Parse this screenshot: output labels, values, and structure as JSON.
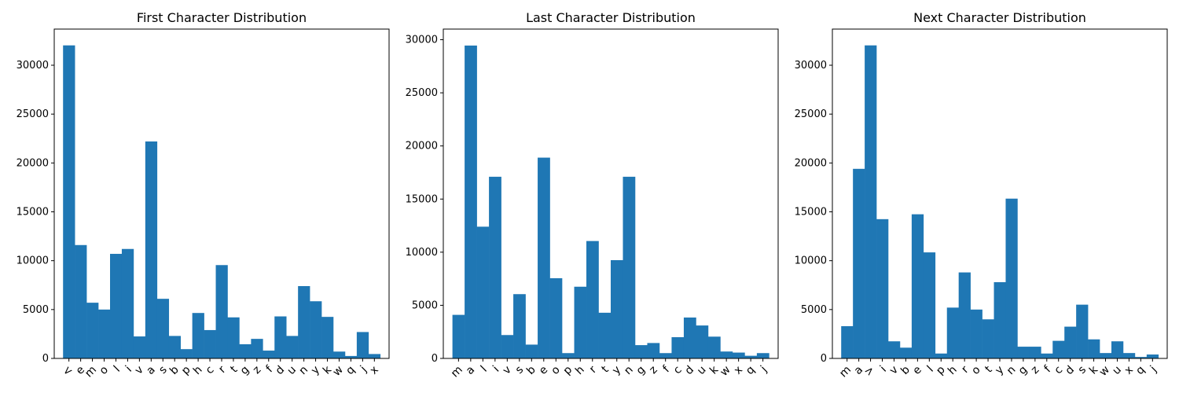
{
  "figure": {
    "bar_color": "#1f77b4"
  },
  "chart_data": [
    {
      "type": "bar",
      "title": "First Character Distribution",
      "xlabel": "",
      "ylabel": "",
      "ylim": [
        0,
        33700
      ],
      "yticks": [
        0,
        5000,
        10000,
        15000,
        20000,
        25000,
        30000
      ],
      "tick_labels": [
        "0",
        "5000",
        "10000",
        "15000",
        "20000",
        "25000",
        "30000"
      ],
      "grid": false,
      "categories": [
        "<",
        "e",
        "m",
        "o",
        "l",
        "i",
        "v",
        "a",
        "s",
        "b",
        "p",
        "h",
        "c",
        "r",
        "t",
        "g",
        "z",
        "f",
        "d",
        "u",
        "n",
        "y",
        "k",
        "w",
        "q",
        "j",
        "x"
      ],
      "values": [
        32033,
        11600,
        5700,
        5000,
        10700,
        11200,
        2250,
        22200,
        6100,
        2300,
        950,
        4650,
        2900,
        9550,
        4200,
        1450,
        2000,
        800,
        4300,
        2300,
        7400,
        5850,
        4250,
        700,
        250,
        2700,
        450
      ]
    },
    {
      "type": "bar",
      "title": "Last Character Distribution",
      "xlabel": "",
      "ylabel": "",
      "ylim": [
        0,
        31000
      ],
      "yticks": [
        0,
        5000,
        10000,
        15000,
        20000,
        25000,
        30000
      ],
      "tick_labels": [
        "0",
        "5000",
        "10000",
        "15000",
        "20000",
        "25000",
        "30000"
      ],
      "grid": false,
      "categories": [
        "m",
        "a",
        "l",
        "i",
        "v",
        "s",
        "b",
        "e",
        "o",
        "p",
        "h",
        "r",
        "t",
        "y",
        "n",
        "g",
        "z",
        "f",
        "c",
        "d",
        "u",
        "k",
        "w",
        "x",
        "q",
        "j"
      ],
      "values": [
        4100,
        29450,
        12400,
        17100,
        2200,
        6050,
        1300,
        18900,
        7550,
        500,
        6750,
        11050,
        4300,
        9250,
        17100,
        1250,
        1450,
        500,
        2000,
        3850,
        3100,
        2050,
        650,
        550,
        250,
        500
      ]
    },
    {
      "type": "bar",
      "title": "Next Character Distribution",
      "xlabel": "",
      "ylabel": "",
      "ylim": [
        0,
        33700
      ],
      "yticks": [
        0,
        5000,
        10000,
        15000,
        20000,
        25000,
        30000
      ],
      "tick_labels": [
        "0",
        "5000",
        "10000",
        "15000",
        "20000",
        "25000",
        "30000"
      ],
      "grid": false,
      "categories": [
        "m",
        "a",
        ">",
        "i",
        "v",
        "b",
        "e",
        "l",
        "p",
        "h",
        "r",
        "o",
        "t",
        "y",
        "n",
        "g",
        "z",
        "f",
        "c",
        "d",
        "s",
        "k",
        "w",
        "u",
        "x",
        "q",
        "j"
      ],
      "values": [
        3300,
        19400,
        32033,
        14250,
        1750,
        1100,
        14750,
        10850,
        500,
        5200,
        8800,
        5000,
        4000,
        7800,
        16350,
        1200,
        1200,
        500,
        1800,
        3250,
        5500,
        1950,
        550,
        1750,
        550,
        150,
        400
      ]
    }
  ]
}
